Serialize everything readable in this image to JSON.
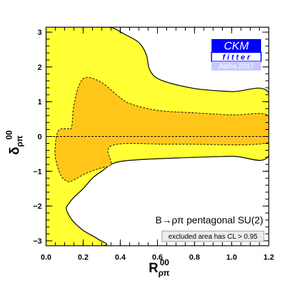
{
  "chart_data": {
    "type": "area",
    "xlabel": {
      "main": "R",
      "sup": "00",
      "sub": "ρπ"
    },
    "ylabel": {
      "main": "δ",
      "sup": "00",
      "sub": "ρπ"
    },
    "xlim": [
      0.0,
      1.2
    ],
    "ylim": [
      -3.14159,
      3.14159
    ],
    "xticks": [
      "0.0",
      "0.2",
      "0.4",
      "0.6",
      "0.8",
      "1.0",
      "1.2"
    ],
    "yticks": [
      "−3",
      "−2",
      "−1",
      "0",
      "1",
      "2",
      "3"
    ],
    "xtick_values": [
      0.0,
      0.2,
      0.4,
      0.6,
      0.8,
      1.0,
      1.2
    ],
    "ytick_values": [
      -3,
      -2,
      -1,
      0,
      1,
      2,
      3
    ],
    "process_label": "B→ρπ pentagonal SU(2)",
    "annotation": "excluded area has CL > 0.95",
    "logo": {
      "line1": "CKM",
      "line2": "fitter",
      "line3": "Alpha 2017"
    },
    "colors": {
      "outer_region": "#ffff33",
      "inner_region": "#ffc61a",
      "excluded": "#ffffff",
      "logo_blue": "#0000ff",
      "logo_light": "#c8c8ff"
    },
    "regions": [
      {
        "name": "CL 0.95 allowed region",
        "points": [
          [
            0.0,
            3.14159
          ],
          [
            0.3,
            3.14159
          ],
          [
            0.36,
            3.12
          ],
          [
            0.42,
            2.95
          ],
          [
            0.5,
            2.7
          ],
          [
            0.54,
            2.35
          ],
          [
            0.56,
            1.9
          ],
          [
            0.62,
            1.62
          ],
          [
            0.8,
            1.38
          ],
          [
            1.0,
            1.29
          ],
          [
            1.2,
            1.25
          ],
          [
            1.2,
            -0.55
          ],
          [
            1.0,
            -0.57
          ],
          [
            0.7,
            -0.62
          ],
          [
            0.4,
            -0.72
          ],
          [
            0.3,
            -1.0
          ],
          [
            0.25,
            -1.2
          ],
          [
            0.2,
            -1.5
          ],
          [
            0.15,
            -1.75
          ],
          [
            0.12,
            -1.95
          ],
          [
            0.11,
            -2.1
          ],
          [
            0.14,
            -2.4
          ],
          [
            0.2,
            -2.7
          ],
          [
            0.28,
            -2.95
          ],
          [
            0.31,
            -3.14159
          ],
          [
            0.0,
            -3.14159
          ]
        ]
      },
      {
        "name": "CL 0.68 allowed region",
        "points": [
          [
            0.05,
            -0.25
          ],
          [
            0.06,
            0.1
          ],
          [
            0.08,
            0.22
          ],
          [
            0.1,
            0.22
          ],
          [
            0.12,
            0.22
          ],
          [
            0.13,
            0.2
          ],
          [
            0.14,
            0.35
          ],
          [
            0.15,
            0.9
          ],
          [
            0.18,
            1.5
          ],
          [
            0.22,
            1.7
          ],
          [
            0.3,
            1.55
          ],
          [
            0.38,
            1.2
          ],
          [
            0.45,
            0.95
          ],
          [
            0.6,
            0.75
          ],
          [
            0.8,
            0.68
          ],
          [
            1.0,
            0.62
          ],
          [
            1.2,
            0.6
          ],
          [
            1.2,
            -0.17
          ],
          [
            0.7,
            -0.22
          ],
          [
            0.36,
            -0.25
          ],
          [
            0.35,
            -0.8
          ],
          [
            0.3,
            -0.9
          ],
          [
            0.22,
            -1.05
          ],
          [
            0.15,
            -1.25
          ],
          [
            0.12,
            -1.3
          ],
          [
            0.09,
            -1.2
          ],
          [
            0.07,
            -1.0
          ],
          [
            0.05,
            -0.6
          ]
        ]
      }
    ],
    "reference_line": {
      "y": 0
    }
  }
}
